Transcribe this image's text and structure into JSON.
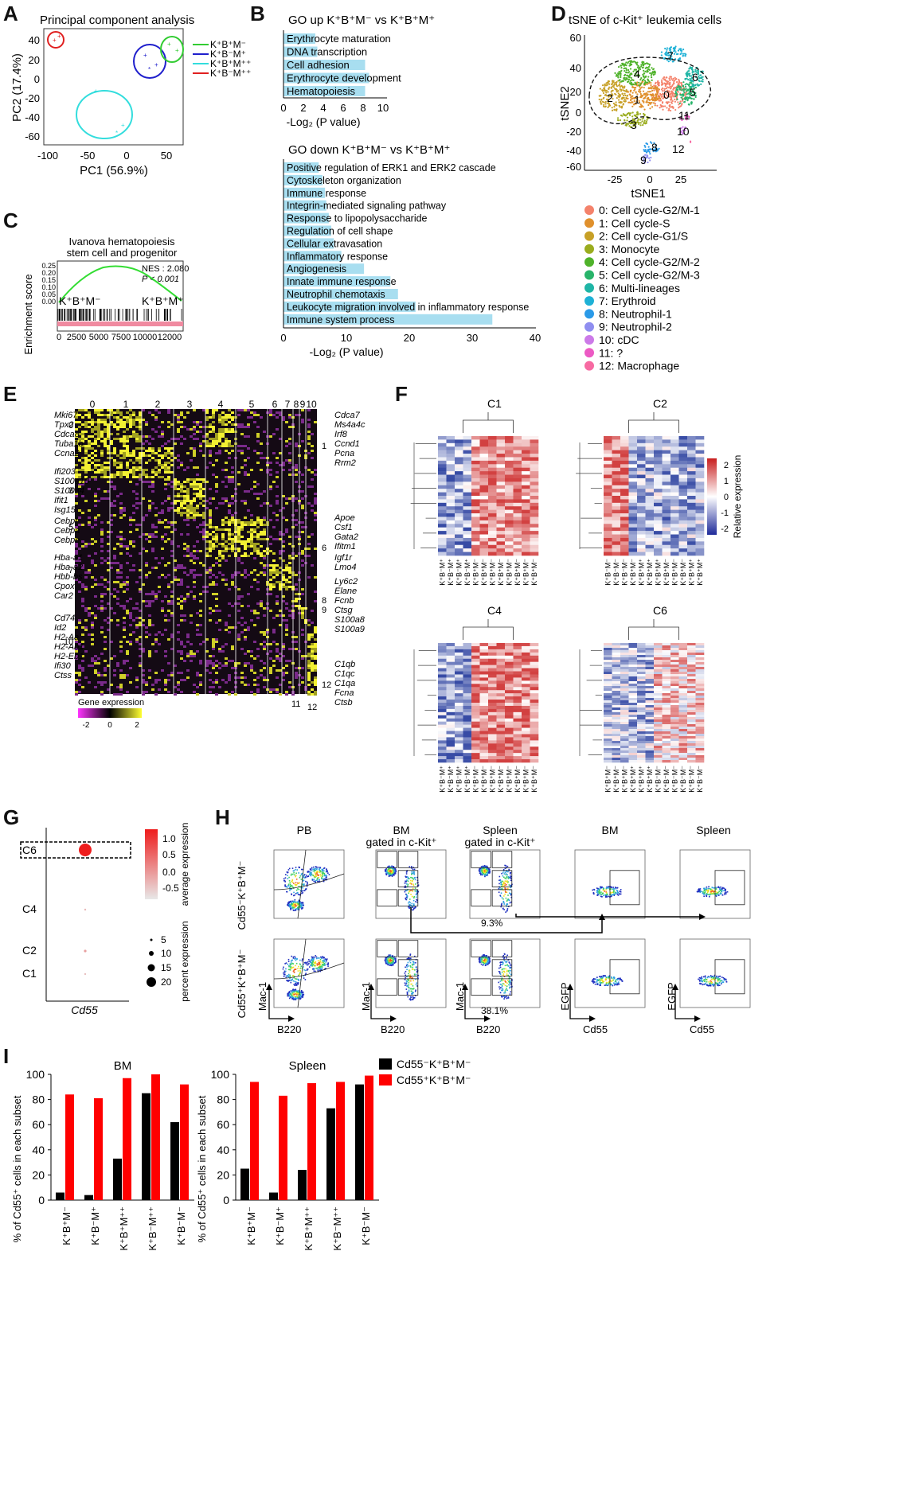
{
  "panel_labels": [
    "A",
    "B",
    "C",
    "D",
    "E",
    "F",
    "G",
    "H",
    "I"
  ],
  "A": {
    "title": "Principal component analysis",
    "xlabel": "PC1 (56.9%)",
    "ylabel": "PC2 (17.4%)",
    "xticks": [
      "-100",
      "-50",
      "0",
      "50"
    ],
    "yticks": [
      "40",
      "20",
      "0",
      "-20",
      "-40",
      "-60"
    ],
    "legend": [
      {
        "label": "K⁺B⁺M⁻",
        "color": "#33cc33"
      },
      {
        "label": "K⁺B⁻M⁺",
        "color": "#1f1fcc"
      },
      {
        "label": "K⁺B⁺M⁺⁺",
        "color": "#33dddd"
      },
      {
        "label": "K⁺B⁻M⁺⁺",
        "color": "#e02020"
      }
    ]
  },
  "B": {
    "up": {
      "title": "GO up K⁺B⁺M⁻ vs K⁺B⁺M⁺",
      "terms": [
        "Erythrocyte maturation",
        "DNA transcription",
        "Cell adhesion",
        "Erythrocyte development",
        "Hematopoiesis"
      ],
      "values": [
        3.2,
        3.4,
        8.2,
        8.6,
        8.2
      ],
      "xticks": [
        "0",
        "2",
        "4",
        "6",
        "8",
        "10"
      ],
      "xlabel": "-Log₂ (P value)"
    },
    "down": {
      "title": "GO down K⁺B⁺M⁻ vs K⁺B⁺M⁺",
      "terms": [
        "Positive regulation of ERK1 and ERK2 cascade",
        "Cytoskeleton organization",
        "Immune response",
        "Integrin-mediated signaling pathway",
        "Response to lipopolysaccharide",
        "Regulation of cell shape",
        "Cellular extravasation",
        "Inflammatory response",
        "Angiogenesis",
        "Innate immune response",
        "Neutrophil chemotaxis",
        "Leukocyte migration involved in inflammatory response",
        "Immune system process"
      ],
      "values": [
        5.6,
        6.2,
        6.6,
        6.8,
        7.2,
        7.6,
        8.0,
        9.2,
        12.8,
        17.0,
        18.2,
        21.0,
        33.2
      ],
      "xticks": [
        "0",
        "10",
        "20",
        "30",
        "40"
      ],
      "xlabel": "-Log₂ (P value)"
    },
    "bar_color": "#a8def0"
  },
  "C": {
    "title_line1": "Ivanova hematopoiesis",
    "title_line2": "stem cell and progenitor",
    "nes": "NES : 2.080",
    "pval": "P < 0.001",
    "ylabel": "Enrichment score",
    "yticks": [
      "0.25",
      "0.20",
      "0.15",
      "0.10",
      "0.05",
      "0.00"
    ],
    "left_group": "K⁺B⁺M⁻",
    "right_group": "K⁺B⁺M⁺",
    "xticks": [
      "0",
      "2500",
      "5000",
      "7500",
      "10000",
      "12000"
    ]
  },
  "D": {
    "title": "tSNE of c-Kit⁺ leukemia cells",
    "xlabel": "tSNE1",
    "ylabel": "tSNE2",
    "xticks": [
      "-25",
      "0",
      "25"
    ],
    "yticks": [
      "60",
      "40",
      "20",
      "0",
      "-20",
      "-40",
      "-60"
    ],
    "clusters": [
      {
        "label": "0: Cell cycle-G2/M-1",
        "color": "#f4826b"
      },
      {
        "label": "1: Cell cycle-S",
        "color": "#e0902c"
      },
      {
        "label": "2: Cell cycle-G1/S",
        "color": "#c7a026"
      },
      {
        "label": "3: Monocyte",
        "color": "#9aac1e"
      },
      {
        "label": "4: Cell cycle-G2/M-2",
        "color": "#4fb22a"
      },
      {
        "label": "5: Cell cycle-G2/M-3",
        "color": "#28b46a"
      },
      {
        "label": "6: Multi-lineages",
        "color": "#1fb5a6"
      },
      {
        "label": "7: Erythroid",
        "color": "#1eb1d6"
      },
      {
        "label": "8: Neutrophil-1",
        "color": "#2a9ae8"
      },
      {
        "label": "9: Neutrophil-2",
        "color": "#8f8ef0"
      },
      {
        "label": "10: cDC",
        "color": "#cc7ae8"
      },
      {
        "label": "11: ?",
        "color": "#ec5ac4"
      },
      {
        "label": "12: Macrophage",
        "color": "#f76aa2"
      }
    ],
    "map_labels": [
      "0",
      "1",
      "2",
      "3",
      "4",
      "5",
      "6",
      "7",
      "8",
      "9",
      "10",
      "11",
      "12"
    ]
  },
  "E": {
    "columns": [
      "0",
      "1",
      "2",
      "3",
      "4",
      "5",
      "6",
      "7",
      "8",
      "9",
      "10"
    ],
    "left_genes": [
      "Mki67",
      "Tpx2",
      "Cdca8",
      "Tuba1b",
      "Ccna2",
      "Ifi203",
      "S100a10",
      "S100a4",
      "Ifit1",
      "Isg15",
      "Cebpf",
      "Cebpa",
      "Cebpe",
      "Hba-a1",
      "Hba-a2",
      "Hbb-bs",
      "Cpox",
      "Car2",
      "Cd74",
      "Id2",
      "H2-Aa",
      "H2-Ab1",
      "H2-Eb1",
      "Ifi30",
      "Ctss"
    ],
    "left_cluster_tags": [
      "0",
      "3",
      "5",
      "7",
      "10"
    ],
    "right_genes": [
      "Cdca7",
      "Ms4a4c",
      "Irf8",
      "Ccnd1",
      "Pcna",
      "Rrm2",
      "Apoe",
      "Csf1",
      "Gata2",
      "Ifitm1",
      "Igf1r",
      "Lmo4",
      "Ly6c2",
      "Elane",
      "Fcnb",
      "Ctsg",
      "S100a8",
      "S100a9",
      "C1qb",
      "C1qc",
      "C1qa",
      "Fcna",
      "Ctsb"
    ],
    "right_cluster_tags": [
      "1",
      "6",
      "8",
      "9",
      "12"
    ],
    "bottom_tags": [
      "11",
      "12"
    ],
    "legend_title": "Gene expression",
    "legend_ticks": [
      "-2",
      "0",
      "2"
    ]
  },
  "F": {
    "heatmaps": [
      {
        "title": "C1",
        "labels": [
          "K⁺B⁻M⁺",
          "K⁺B⁻M⁺",
          "K⁺B⁻M⁺",
          "K⁺B⁻M⁺",
          "K⁺B⁺M⁻",
          "K⁺B⁺M⁻",
          "K⁺B⁺M⁻",
          "K⁺B⁺M⁻",
          "K⁺B⁺M⁻",
          "K⁺B⁺M⁻",
          "K⁺B⁺M⁻",
          "K⁺B⁺M⁻"
        ]
      },
      {
        "title": "C2",
        "labels": [
          "K⁺B⁻M⁻",
          "K⁺B⁻M⁻",
          "K⁺B⁻M⁻",
          "K⁺B⁺M⁻",
          "K⁺B⁺M⁺",
          "K⁺B⁺M⁺",
          "K⁺B⁺M⁺",
          "K⁺B⁺M⁻",
          "K⁺B⁺M⁻",
          "K⁺B⁺M⁻",
          "K⁺B⁺M⁺",
          "K⁺B⁺M⁺"
        ]
      },
      {
        "title": "C4",
        "labels": [
          "K⁺B⁻M⁺",
          "K⁺B⁻M⁺",
          "K⁺B⁻M⁺",
          "K⁺B⁻M⁺",
          "K⁺B⁺M⁻",
          "K⁺B⁺M⁻",
          "K⁺B⁺M⁻",
          "K⁺B⁺M⁻",
          "K⁺B⁺M⁻",
          "K⁺B⁺M⁻",
          "K⁺B⁺M⁻",
          "K⁺B⁺M⁻"
        ]
      },
      {
        "title": "C6",
        "labels": [
          "K⁺B⁺M⁻",
          "K⁺B⁺M⁻",
          "K⁺B⁺M⁻",
          "K⁺B⁺M⁺",
          "K⁺B⁺M⁺",
          "K⁺B⁺M⁺",
          "K⁺B⁻M⁻",
          "K⁺B⁻M⁻",
          "K⁺B⁻M⁻",
          "K⁺B⁻M⁻",
          "K⁺B⁻M⁻",
          "K⁺B⁻M⁻"
        ]
      }
    ],
    "scale_ticks": [
      "2",
      "1",
      "0",
      "-1",
      "-2"
    ],
    "scale_label": "Relative expression"
  },
  "G": {
    "rows": [
      "C6",
      "C4",
      "C2",
      "C1"
    ],
    "xlabel": "Cd55",
    "avg_ticks": [
      "1.0",
      "0.5",
      "0.0",
      "-0.5"
    ],
    "avg_label": "average expression",
    "pct_ticks": [
      "5",
      "10",
      "15",
      "20"
    ],
    "pct_label": "percent expression"
  },
  "H": {
    "col_titles": [
      {
        "line1": "PB",
        "line2": ""
      },
      {
        "line1": "BM",
        "line2": "gated in c-Kit⁺"
      },
      {
        "line1": "Spleen",
        "line2": "gated in c-Kit⁺"
      },
      {
        "line1": "BM",
        "line2": ""
      },
      {
        "line1": "Spleen",
        "line2": ""
      }
    ],
    "row_labels": [
      "Cd55⁻K⁺B⁺M⁻",
      "Cd55⁺K⁺B⁺M⁻"
    ],
    "percent_top": "9.3%",
    "percent_bottom": "38.1%",
    "axis_y1": "Mac-1",
    "axis_x1": "B220",
    "axis_y2": "EGFP",
    "axis_x2": "Cd55"
  },
  "I": {
    "ylabel": "% of Cd55⁺ cells in each subset",
    "legend": [
      {
        "label": "Cd55⁻K⁺B⁺M⁻",
        "color": "#000000"
      },
      {
        "label": "Cd55⁺K⁺B⁺M⁻",
        "color": "#ff0000"
      }
    ]
  },
  "chart_data": [
    {
      "type": "bar",
      "title": "BM",
      "categories": [
        "K⁺B⁺M⁻",
        "K⁺B⁻M⁺",
        "K⁺B⁺M⁺⁺",
        "K⁺B⁻M⁺⁺",
        "K⁺B⁻M⁻"
      ],
      "series": [
        {
          "name": "Cd55⁻K⁺B⁺M⁻",
          "values": [
            6,
            4,
            33,
            85,
            62
          ]
        },
        {
          "name": "Cd55⁺K⁺B⁺M⁻",
          "values": [
            84,
            81,
            97,
            100,
            92
          ]
        }
      ],
      "ylim": [
        0,
        100
      ],
      "yticks": [
        "0",
        "20",
        "40",
        "60",
        "80",
        "100"
      ],
      "ylabel": "% of Cd55⁺ cells in each subset"
    },
    {
      "type": "bar",
      "title": "Spleen",
      "categories": [
        "K⁺B⁺M⁻",
        "K⁺B⁻M⁺",
        "K⁺B⁺M⁺⁺",
        "K⁺B⁻M⁺⁺",
        "K⁺B⁻M⁻"
      ],
      "series": [
        {
          "name": "Cd55⁻K⁺B⁺M⁻",
          "values": [
            25,
            6,
            24,
            73,
            92
          ]
        },
        {
          "name": "Cd55⁺K⁺B⁺M⁻",
          "values": [
            94,
            83,
            93,
            94,
            99
          ]
        }
      ],
      "ylim": [
        0,
        100
      ],
      "yticks": [
        "0",
        "20",
        "40",
        "60",
        "80",
        "100"
      ],
      "ylabel": "% of Cd55⁺ cells in each subset"
    }
  ]
}
